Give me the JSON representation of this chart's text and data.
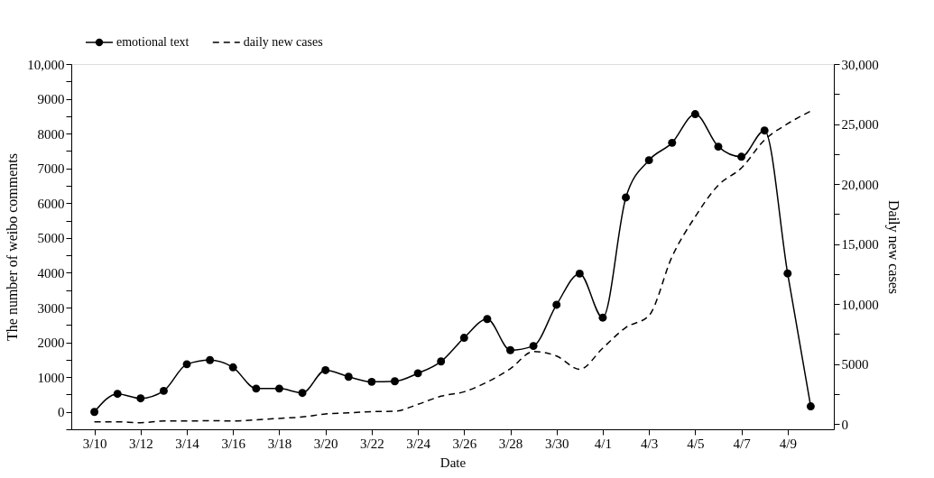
{
  "chart_data": {
    "type": "line",
    "xlabel": "Date",
    "ylabel": "The number of weibo comments",
    "y2label": "Daily new cases",
    "categories": [
      "3/10",
      null,
      "3/12",
      null,
      "3/14",
      null,
      "3/16",
      null,
      "3/18",
      null,
      "3/20",
      null,
      "3/22",
      null,
      "3/24",
      null,
      "3/26",
      null,
      "3/28",
      null,
      "3/30",
      null,
      "4/1",
      null,
      "4/3",
      null,
      "4/5",
      null,
      "4/7",
      null,
      "4/9",
      null
    ],
    "series": [
      {
        "name": "emotional text",
        "color": "#000000",
        "marker": "circle",
        "line_style": "solid",
        "values": [
          0,
          520,
          390,
          605,
          1370,
          1490,
          1280,
          670,
          670,
          545,
          1200,
          1010,
          865,
          880,
          1110,
          1450,
          2130,
          2670,
          1775,
          1895,
          3080,
          3975,
          2710,
          6165,
          7235,
          7735,
          8560,
          7625,
          7335,
          8090,
          3980,
          160
        ]
      },
      {
        "name": "daily new cases",
        "color": "#000000",
        "marker": "none",
        "line_style": "dashed",
        "axis": "y2",
        "values": [
          170,
          170,
          100,
          240,
          240,
          270,
          240,
          340,
          460,
          580,
          830,
          925,
          1020,
          1050,
          1630,
          2310,
          2680,
          3490,
          4600,
          6030,
          5660,
          4550,
          6320,
          8040,
          9030,
          13950,
          17270,
          19900,
          21330,
          23670,
          25020,
          26080
        ]
      }
    ],
    "ylim": [
      -500,
      10000
    ],
    "yticks": [
      {
        "value": -500,
        "label": null
      },
      0,
      {
        "value": 500,
        "label": null
      },
      1000,
      {
        "value": 1500,
        "label": null
      },
      2000,
      {
        "value": 2500,
        "label": null
      },
      3000,
      {
        "value": 3500,
        "label": null
      },
      4000,
      {
        "value": 4500,
        "label": null
      },
      5000,
      {
        "value": 5500,
        "label": null
      },
      6000,
      {
        "value": 6500,
        "label": null
      },
      7000,
      {
        "value": 7500,
        "label": null
      },
      8000,
      {
        "value": 8500,
        "label": null
      },
      9000,
      {
        "value": 9500,
        "label": null
      },
      {
        "value": 10000,
        "label": "10,000"
      }
    ],
    "y2lim": [
      -450,
      30000
    ],
    "y2ticks": [
      0,
      {
        "value": 2500,
        "label": null
      },
      5000,
      {
        "value": 7500,
        "label": null
      },
      {
        "value": 10000,
        "label": "10,000"
      },
      {
        "value": 12500,
        "label": null
      },
      {
        "value": 15000,
        "label": "15,000"
      },
      {
        "value": 17500,
        "label": null
      },
      {
        "value": 20000,
        "label": "20,000"
      },
      {
        "value": 22500,
        "label": null
      },
      {
        "value": 25000,
        "label": "25,000"
      },
      {
        "value": 27500,
        "label": null
      },
      {
        "value": 30000,
        "label": "30,000"
      }
    ],
    "grid": false,
    "legend": "top left"
  }
}
